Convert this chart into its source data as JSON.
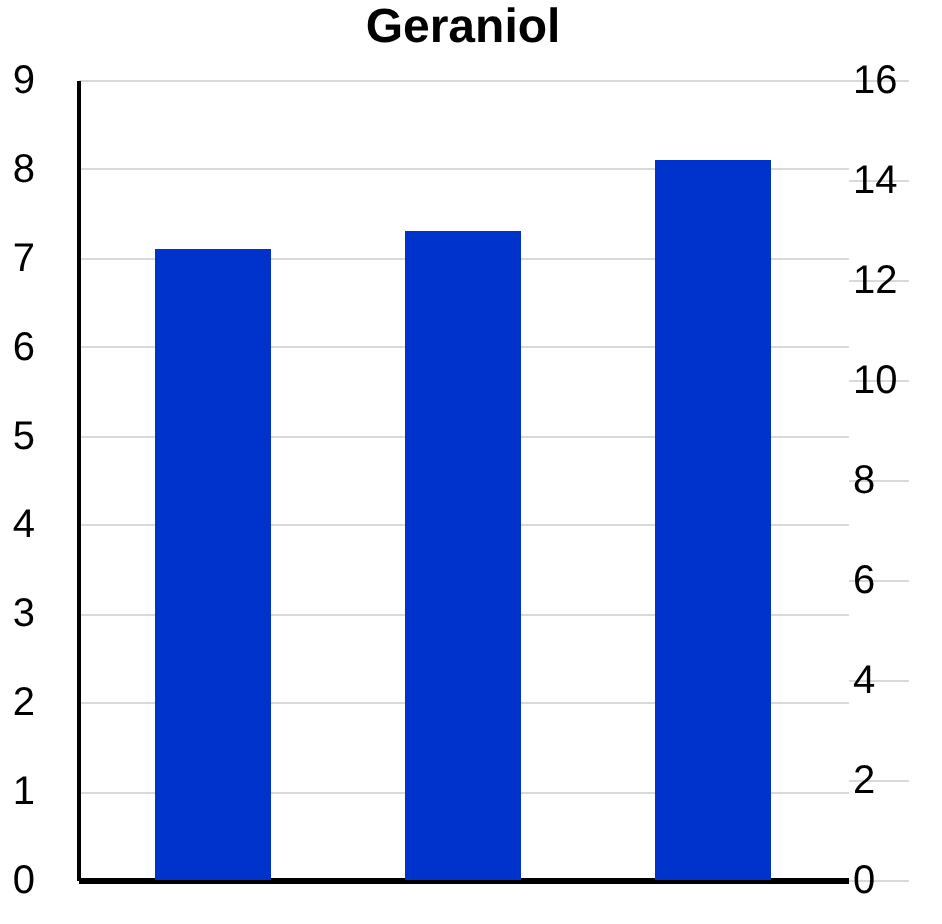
{
  "chart_data": {
    "type": "bar",
    "title": "Geraniol",
    "categories": [
      null,
      null,
      null
    ],
    "values": [
      7.1,
      7.3,
      8.1
    ],
    "color": "#0033cc",
    "ylim": [
      0,
      9
    ],
    "yticks": [
      0,
      1,
      2,
      3,
      4,
      5,
      6,
      7,
      8,
      9
    ],
    "y2lim": [
      0,
      16
    ],
    "y2ticks": [
      0,
      2,
      4,
      6,
      8,
      10,
      12,
      14,
      16
    ],
    "grid": "y"
  }
}
